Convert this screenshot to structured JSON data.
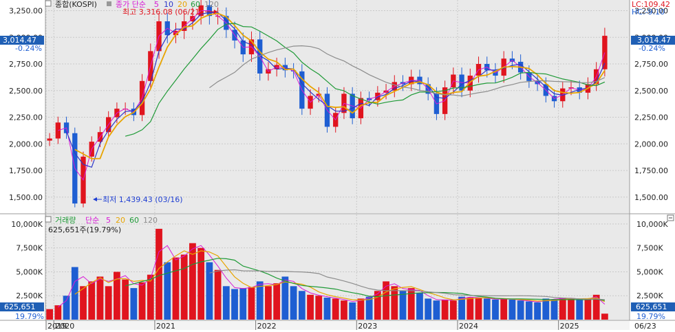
{
  "header": {
    "index_name": "종합(KOSPI)",
    "price_label": "종가 단순",
    "ma_periods": [
      "5",
      "10",
      "20",
      "60",
      "120"
    ],
    "high_note": "최고 3,316.08 (06/21)",
    "low_note": "최저 1,439.43 (03/16)"
  },
  "right_panel": {
    "lc": "LC:109.42",
    "hc": "HC:-9.10",
    "price_tag": "3,014.47",
    "price_change": "-0.24%",
    "volume_tag": "625,651",
    "volume_change": "19.79%",
    "date_tag": "06/23"
  },
  "left_panel": {
    "price_tag": "3,014.47",
    "price_change": "-0.24%",
    "volume_tag": "625,651",
    "volume_change": "19.79%"
  },
  "volume_header": {
    "label": "거래량",
    "ma_label": "단순",
    "ma_periods": [
      "5",
      "20",
      "60",
      "120"
    ],
    "current": "625,651주(19.79%)"
  },
  "colors": {
    "up": "#e0141e",
    "down": "#1e5ed2",
    "ma5": "#d81ad6",
    "ma10": "#2b35c9",
    "ma20": "#e8a400",
    "ma60": "#1f9a37",
    "ma120": "#8c8c8c",
    "panel_bg": "#e9e9e9",
    "tag_bg": "#1f5fb5"
  },
  "chart_data": [
    {
      "type": "candlestick",
      "title": "종합(KOSPI)",
      "x_ticks": [
        "2019",
        "2020",
        "2021",
        "2022",
        "2023",
        "2024",
        "2025"
      ],
      "y_ticks": [
        "3,250.00",
        "3,000.00",
        "2,750.00",
        "2,500.00",
        "2,250.00",
        "2,000.00",
        "1,750.00",
        "1,500.00"
      ],
      "ylim": [
        1350,
        3350
      ],
      "grid": true,
      "series": [
        {
          "name": "종가",
          "points": [
            [
              "2019-12",
              2050
            ],
            [
              "2020-01",
              2200
            ],
            [
              "2020-02",
              2100
            ],
            [
              "2020-03",
              1440
            ],
            [
              "2020-04",
              1880
            ],
            [
              "2020-05",
              2020
            ],
            [
              "2020-06",
              2110
            ],
            [
              "2020-07",
              2250
            ],
            [
              "2020-08",
              2330
            ],
            [
              "2020-09",
              2330
            ],
            [
              "2020-10",
              2270
            ],
            [
              "2020-11",
              2590
            ],
            [
              "2020-12",
              2870
            ],
            [
              "2021-01",
              3150
            ],
            [
              "2021-02",
              3020
            ],
            [
              "2021-03",
              3060
            ],
            [
              "2021-04",
              3150
            ],
            [
              "2021-05",
              3200
            ],
            [
              "2021-06",
              3300
            ],
            [
              "2021-07",
              3200
            ],
            [
              "2021-08",
              3200
            ],
            [
              "2021-09",
              3070
            ],
            [
              "2021-10",
              2970
            ],
            [
              "2021-11",
              2840
            ],
            [
              "2021-12",
              2980
            ],
            [
              "2022-01",
              2660
            ],
            [
              "2022-02",
              2700
            ],
            [
              "2022-03",
              2740
            ],
            [
              "2022-04",
              2690
            ],
            [
              "2022-05",
              2680
            ],
            [
              "2022-06",
              2330
            ],
            [
              "2022-07",
              2450
            ],
            [
              "2022-08",
              2470
            ],
            [
              "2022-09",
              2160
            ],
            [
              "2022-10",
              2290
            ],
            [
              "2022-11",
              2470
            ],
            [
              "2022-12",
              2240
            ],
            [
              "2023-01",
              2430
            ],
            [
              "2023-02",
              2410
            ],
            [
              "2023-03",
              2480
            ],
            [
              "2023-04",
              2500
            ],
            [
              "2023-05",
              2580
            ],
            [
              "2023-06",
              2560
            ],
            [
              "2023-07",
              2630
            ],
            [
              "2023-08",
              2560
            ],
            [
              "2023-09",
              2470
            ],
            [
              "2023-10",
              2280
            ],
            [
              "2023-11",
              2530
            ],
            [
              "2023-12",
              2650
            ],
            [
              "2024-01",
              2500
            ],
            [
              "2024-02",
              2640
            ],
            [
              "2024-03",
              2750
            ],
            [
              "2024-04",
              2690
            ],
            [
              "2024-05",
              2640
            ],
            [
              "2024-06",
              2800
            ],
            [
              "2024-07",
              2770
            ],
            [
              "2024-08",
              2670
            ],
            [
              "2024-09",
              2590
            ],
            [
              "2024-10",
              2560
            ],
            [
              "2024-11",
              2450
            ],
            [
              "2024-12",
              2400
            ],
            [
              "2025-01",
              2520
            ],
            [
              "2025-02",
              2530
            ],
            [
              "2025-03",
              2480
            ],
            [
              "2025-04",
              2560
            ],
            [
              "2025-05",
              2700
            ],
            [
              "2025-06",
              3014
            ]
          ]
        }
      ],
      "annotations": {
        "high": 3316.08,
        "high_date": "06/21",
        "low": 1439.43,
        "low_date": "03/16"
      }
    },
    {
      "type": "bar",
      "title": "거래량",
      "y_ticks": [
        "10,000K",
        "7,500K",
        "5,000K",
        "2,500K"
      ],
      "ylim": [
        0,
        11000
      ],
      "series": [
        {
          "name": "거래량",
          "points": [
            [
              "2019-12",
              1100
            ],
            [
              "2020-01",
              1500
            ],
            [
              "2020-02",
              2500
            ],
            [
              "2020-03",
              5500
            ],
            [
              "2020-04",
              3500
            ],
            [
              "2020-05",
              4000
            ],
            [
              "2020-06",
              4500
            ],
            [
              "2020-07",
              3500
            ],
            [
              "2020-08",
              5000
            ],
            [
              "2020-09",
              4200
            ],
            [
              "2020-10",
              3300
            ],
            [
              "2020-11",
              3900
            ],
            [
              "2020-12",
              4700
            ],
            [
              "2021-01",
              9500
            ],
            [
              "2021-02",
              6000
            ],
            [
              "2021-03",
              6500
            ],
            [
              "2021-04",
              6800
            ],
            [
              "2021-05",
              8000
            ],
            [
              "2021-06",
              7500
            ],
            [
              "2021-07",
              6000
            ],
            [
              "2021-08",
              5200
            ],
            [
              "2021-09",
              3500
            ],
            [
              "2021-10",
              3200
            ],
            [
              "2021-11",
              3300
            ],
            [
              "2021-12",
              3400
            ],
            [
              "2022-01",
              4000
            ],
            [
              "2022-02",
              3500
            ],
            [
              "2022-03",
              3800
            ],
            [
              "2022-04",
              4500
            ],
            [
              "2022-05",
              3500
            ],
            [
              "2022-06",
              3000
            ],
            [
              "2022-07",
              2600
            ],
            [
              "2022-08",
              2500
            ],
            [
              "2022-09",
              2300
            ],
            [
              "2022-10",
              2200
            ],
            [
              "2022-11",
              2000
            ],
            [
              "2022-12",
              1800
            ],
            [
              "2023-01",
              2200
            ],
            [
              "2023-02",
              2400
            ],
            [
              "2023-03",
              3000
            ],
            [
              "2023-04",
              4000
            ],
            [
              "2023-05",
              3500
            ],
            [
              "2023-06",
              3000
            ],
            [
              "2023-07",
              3300
            ],
            [
              "2023-08",
              2800
            ],
            [
              "2023-09",
              2200
            ],
            [
              "2023-10",
              2000
            ],
            [
              "2023-11",
              2100
            ],
            [
              "2023-12",
              2000
            ],
            [
              "2024-01",
              2400
            ],
            [
              "2024-02",
              2300
            ],
            [
              "2024-03",
              2300
            ],
            [
              "2024-04",
              2200
            ],
            [
              "2024-05",
              2100
            ],
            [
              "2024-06",
              2200
            ],
            [
              "2024-07",
              2100
            ],
            [
              "2024-08",
              2000
            ],
            [
              "2024-09",
              1900
            ],
            [
              "2024-10",
              1800
            ],
            [
              "2024-11",
              2200
            ],
            [
              "2024-12",
              2100
            ],
            [
              "2025-01",
              2300
            ],
            [
              "2025-02",
              2200
            ],
            [
              "2025-03",
              2100
            ],
            [
              "2025-04",
              2200
            ],
            [
              "2025-05",
              2600
            ],
            [
              "2025-06",
              626
            ]
          ]
        }
      ]
    }
  ]
}
